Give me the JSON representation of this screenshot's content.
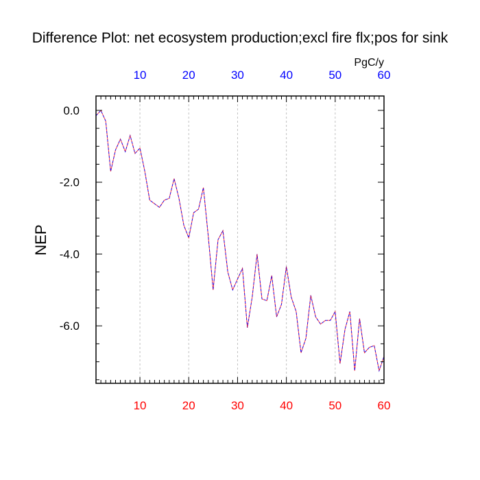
{
  "chart_data": {
    "type": "line",
    "title": "Difference Plot: net ecosystem production;excl fire flx;pos for sink",
    "units": "PgC/y",
    "ylabel": "NEP",
    "xlim": [
      1,
      60
    ],
    "ylim": [
      -7.6,
      0.4
    ],
    "xticks": [
      10,
      20,
      30,
      40,
      50,
      60
    ],
    "xtick_labels": [
      "10",
      "20",
      "30",
      "40",
      "50",
      "60"
    ],
    "yticks": [
      0,
      -2,
      -4,
      -6
    ],
    "ytick_labels": [
      "0.0",
      "-2.0",
      "-4.0",
      "-6.0"
    ],
    "grid": "vertical dashed at major x ticks",
    "line_style": "dashed",
    "colors": {
      "bottom_tick_labels": "#ff0000",
      "top_tick_labels": "#0000ff",
      "line_primary": "#0000ff",
      "line_secondary": "#ff0000",
      "grid": "#c0c0c0",
      "axes": "#000000"
    },
    "series": [
      {
        "x": [
          1,
          2,
          3,
          4,
          5,
          6,
          7,
          8,
          9,
          10,
          11,
          12,
          13,
          14,
          15,
          16,
          17,
          18,
          19,
          20,
          21,
          22,
          23,
          24,
          25,
          26,
          27,
          28,
          29,
          30,
          31,
          32,
          33,
          34,
          35,
          36,
          37,
          38,
          39,
          40,
          41,
          42,
          43,
          44,
          45,
          46,
          47,
          48,
          49,
          50,
          51,
          52,
          53,
          54,
          55,
          56,
          57,
          58,
          59,
          60
        ],
        "values": [
          -0.15,
          0.0,
          -0.3,
          -1.7,
          -1.1,
          -0.8,
          -1.15,
          -0.7,
          -1.2,
          -1.05,
          -1.7,
          -2.5,
          -2.6,
          -2.7,
          -2.5,
          -2.45,
          -1.9,
          -2.45,
          -3.2,
          -3.55,
          -2.85,
          -2.75,
          -2.15,
          -3.5,
          -5.0,
          -3.6,
          -3.35,
          -4.5,
          -5.0,
          -4.7,
          -4.4,
          -6.05,
          -5.2,
          -4.0,
          -5.25,
          -5.3,
          -4.6,
          -5.75,
          -5.4,
          -4.35,
          -5.2,
          -5.6,
          -6.75,
          -6.35,
          -5.15,
          -5.75,
          -5.95,
          -5.85,
          -5.85,
          -5.6,
          -7.05,
          -6.1,
          -5.6,
          -7.25,
          -5.8,
          -6.75,
          -6.6,
          -6.55,
          -7.25,
          -6.85
        ]
      }
    ]
  }
}
